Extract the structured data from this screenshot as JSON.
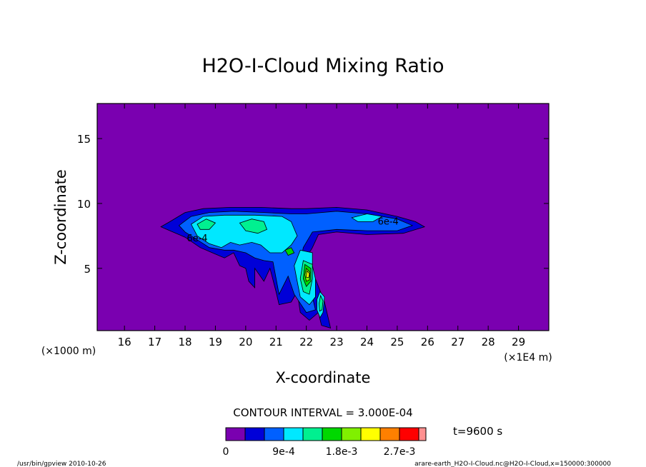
{
  "chart_data": {
    "type": "heatmap",
    "title": "H2O-I-Cloud Mixing Ratio",
    "xlabel": "X-coordinate",
    "ylabel": "Z-coordinate",
    "x_unit": "(×1E4 m)",
    "y_unit": "(×1000 m)",
    "xlim": [
      15.1,
      30.0
    ],
    "ylim": [
      0.2,
      17.7
    ],
    "x_ticks": [
      16,
      17,
      18,
      19,
      20,
      21,
      22,
      23,
      24,
      25,
      26,
      27,
      28,
      29
    ],
    "y_ticks": [
      5,
      10,
      15
    ],
    "contour_interval_text": "CONTOUR INTERVAL = 3.000E-04",
    "contour_labels": [
      "6e-4",
      "6e-4"
    ],
    "time_label": "t=9600 s",
    "colorbar": {
      "levels": [
        0,
        0.0003,
        0.0006,
        0.0009,
        0.0012,
        0.0015,
        0.0018,
        0.0021,
        0.0024,
        0.0027,
        0.003
      ],
      "labels": [
        "0",
        "9e-4",
        "1.8e-3",
        "2.7e-3"
      ],
      "colors": [
        "#7a00b0",
        "#0000d8",
        "#0060ff",
        "#00e8ff",
        "#00f090",
        "#00d800",
        "#80f000",
        "#ffff00",
        "#ff8000",
        "#ff0000",
        "#ff9090"
      ]
    },
    "background_color": "#7a00b0",
    "cloud_regions": [
      {
        "level": 1,
        "points": [
          [
            17.2,
            8.2
          ],
          [
            17.5,
            8.6
          ],
          [
            18.0,
            9.3
          ],
          [
            18.6,
            9.6
          ],
          [
            19.5,
            9.7
          ],
          [
            20.5,
            9.7
          ],
          [
            21.5,
            9.6
          ],
          [
            22.0,
            9.6
          ],
          [
            23.0,
            9.7
          ],
          [
            24.0,
            9.5
          ],
          [
            25.0,
            9.0
          ],
          [
            25.6,
            8.6
          ],
          [
            25.9,
            8.2
          ],
          [
            25.2,
            7.7
          ],
          [
            24.0,
            7.6
          ],
          [
            23.0,
            7.8
          ],
          [
            22.4,
            7.6
          ],
          [
            22.2,
            6.6
          ],
          [
            22.0,
            5.8
          ],
          [
            22.2,
            4.8
          ],
          [
            22.4,
            3.6
          ],
          [
            22.6,
            2.4
          ],
          [
            22.8,
            0.4
          ],
          [
            22.5,
            0.6
          ],
          [
            22.4,
            1.6
          ],
          [
            22.1,
            1.0
          ],
          [
            21.8,
            1.6
          ],
          [
            21.7,
            3.2
          ],
          [
            21.5,
            2.4
          ],
          [
            21.1,
            2.2
          ],
          [
            21.0,
            3.2
          ],
          [
            20.8,
            5.0
          ],
          [
            20.6,
            4.0
          ],
          [
            20.3,
            5.0
          ],
          [
            20.3,
            3.5
          ],
          [
            20.1,
            4.0
          ],
          [
            20.0,
            5.0
          ],
          [
            19.8,
            5.2
          ],
          [
            19.6,
            6.2
          ],
          [
            19.3,
            5.8
          ],
          [
            18.9,
            6.2
          ],
          [
            18.5,
            6.6
          ],
          [
            18.0,
            7.4
          ],
          [
            17.5,
            7.9
          ]
        ]
      },
      {
        "level": 2,
        "points": [
          [
            17.8,
            8.3
          ],
          [
            18.2,
            9.0
          ],
          [
            18.8,
            9.3
          ],
          [
            19.6,
            9.4
          ],
          [
            20.6,
            9.3
          ],
          [
            21.5,
            9.2
          ],
          [
            22.0,
            9.2
          ],
          [
            23.0,
            9.4
          ],
          [
            24.0,
            9.2
          ],
          [
            25.0,
            8.8
          ],
          [
            25.5,
            8.3
          ],
          [
            25.0,
            7.9
          ],
          [
            24.0,
            7.9
          ],
          [
            23.0,
            8.0
          ],
          [
            22.2,
            7.8
          ],
          [
            21.9,
            6.6
          ],
          [
            21.8,
            5.4
          ],
          [
            22.0,
            4.2
          ],
          [
            22.2,
            2.8
          ],
          [
            22.3,
            1.8
          ],
          [
            22.0,
            1.6
          ],
          [
            21.6,
            3.0
          ],
          [
            21.4,
            4.4
          ],
          [
            21.1,
            3.0
          ],
          [
            20.9,
            5.5
          ],
          [
            20.6,
            5.6
          ],
          [
            20.3,
            5.8
          ],
          [
            20.0,
            6.2
          ],
          [
            19.6,
            6.4
          ],
          [
            19.3,
            6.4
          ],
          [
            18.8,
            6.6
          ],
          [
            18.4,
            7.2
          ],
          [
            18.0,
            7.8
          ]
        ]
      },
      {
        "level": 3,
        "points": [
          [
            18.2,
            8.4
          ],
          [
            18.6,
            9.0
          ],
          [
            19.3,
            9.1
          ],
          [
            20.3,
            9.1
          ],
          [
            21.2,
            9.0
          ],
          [
            21.5,
            8.6
          ],
          [
            21.7,
            7.5
          ],
          [
            21.5,
            6.8
          ],
          [
            21.2,
            6.2
          ],
          [
            20.8,
            6.2
          ],
          [
            20.5,
            6.8
          ],
          [
            20.2,
            7.0
          ],
          [
            19.8,
            6.8
          ],
          [
            19.5,
            7.0
          ],
          [
            19.2,
            6.6
          ],
          [
            18.8,
            6.9
          ],
          [
            18.4,
            7.5
          ]
        ]
      },
      {
        "level": 4,
        "points": [
          [
            19.8,
            8.5
          ],
          [
            20.2,
            8.8
          ],
          [
            20.6,
            8.6
          ],
          [
            20.7,
            8.0
          ],
          [
            20.4,
            7.7
          ],
          [
            20.0,
            7.9
          ]
        ]
      },
      {
        "level": 4,
        "points": [
          [
            18.4,
            8.4
          ],
          [
            18.7,
            8.8
          ],
          [
            19.0,
            8.5
          ],
          [
            18.8,
            8.0
          ],
          [
            18.5,
            8.0
          ]
        ]
      },
      {
        "level": 3,
        "points": [
          [
            21.8,
            6.4
          ],
          [
            22.2,
            6.2
          ],
          [
            22.2,
            5.2
          ],
          [
            22.3,
            4.2
          ],
          [
            22.3,
            2.8
          ],
          [
            22.1,
            2.2
          ],
          [
            21.8,
            2.8
          ],
          [
            21.7,
            4.0
          ],
          [
            21.6,
            5.2
          ]
        ]
      },
      {
        "level": 4,
        "points": [
          [
            21.9,
            5.6
          ],
          [
            22.2,
            5.3
          ],
          [
            22.2,
            4.2
          ],
          [
            22.1,
            3.0
          ],
          [
            21.9,
            3.2
          ],
          [
            21.8,
            4.2
          ]
        ]
      },
      {
        "level": 5,
        "points": [
          [
            21.95,
            5.3
          ],
          [
            22.15,
            5.0
          ],
          [
            22.15,
            4.0
          ],
          [
            22.0,
            3.6
          ],
          [
            21.9,
            4.2
          ]
        ]
      },
      {
        "level": 6,
        "points": [
          [
            22.0,
            5.0
          ],
          [
            22.12,
            4.7
          ],
          [
            22.1,
            4.1
          ],
          [
            22.0,
            4.0
          ],
          [
            21.95,
            4.5
          ]
        ]
      },
      {
        "level": 7,
        "points": [
          [
            22.02,
            4.8
          ],
          [
            22.1,
            4.6
          ],
          [
            22.08,
            4.3
          ],
          [
            22.0,
            4.3
          ]
        ]
      },
      {
        "level": 3,
        "points": [
          [
            22.45,
            3.2
          ],
          [
            22.6,
            2.8
          ],
          [
            22.55,
            1.6
          ],
          [
            22.45,
            1.2
          ],
          [
            22.35,
            1.8
          ],
          [
            22.35,
            2.6
          ]
        ]
      },
      {
        "level": 4,
        "points": [
          [
            22.47,
            2.9
          ],
          [
            22.55,
            2.5
          ],
          [
            22.52,
            1.8
          ],
          [
            22.44,
            1.7
          ],
          [
            22.42,
            2.3
          ]
        ]
      },
      {
        "level": 3,
        "points": [
          [
            23.5,
            8.9
          ],
          [
            24.0,
            9.2
          ],
          [
            24.5,
            9.0
          ],
          [
            24.2,
            8.6
          ],
          [
            23.7,
            8.6
          ]
        ]
      },
      {
        "level": 5,
        "points": [
          [
            21.3,
            6.4
          ],
          [
            21.5,
            6.6
          ],
          [
            21.6,
            6.2
          ],
          [
            21.4,
            6.0
          ]
        ]
      }
    ]
  },
  "footer": {
    "left": "/usr/bin/gpview  2010-10-26",
    "right": "arare-earth_H2O-I-Cloud.nc@H2O-I-Cloud,x=150000:300000"
  }
}
